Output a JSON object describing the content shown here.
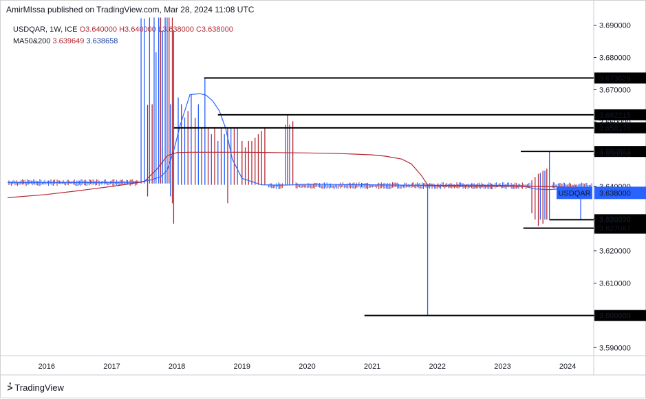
{
  "header": {
    "publisher": "AmirMIssa published on TradingView.com, Mar 28, 2024 11:08 UTC"
  },
  "legend": {
    "symbol_line": "USDQAR, 1W, ICE",
    "open": "O3.640000",
    "high": "H3.640000",
    "low": "L3.638000",
    "close": "C3.638000",
    "ma_label": "MA50&200",
    "ma_value_1": "3.639649",
    "ma_value_2": "3.638658"
  },
  "brand": {
    "name": "TradingView",
    "logo": "tv-logo"
  },
  "colors": {
    "up": "#2962ff",
    "down": "#b22833",
    "ma_fast": "#2962ff",
    "ma_slow": "#b22833",
    "price_tag": "#2962ff",
    "level_line": "#000000"
  },
  "chart_data": {
    "type": "line",
    "symbol": "USDQAR",
    "interval": "1W",
    "exchange": "ICE",
    "ylim": [
      3.5875,
      3.6925
    ],
    "y_ticks": [
      "3.690000",
      "3.680000",
      "3.670000",
      "3.660000",
      "3.650000",
      "3.640000",
      "3.630000",
      "3.620000",
      "3.610000",
      "3.600000",
      "3.590000"
    ],
    "y_tick_values": [
      3.69,
      3.68,
      3.67,
      3.66,
      3.65,
      3.64,
      3.63,
      3.62,
      3.61,
      3.6,
      3.59
    ],
    "x_ticks": [
      "2016",
      "2017",
      "2018",
      "2019",
      "2020",
      "2021",
      "2022",
      "2023",
      "2024"
    ],
    "x_tick_values": [
      2016.0,
      2017.0,
      2018.0,
      2019.0,
      2020.0,
      2021.0,
      2022.0,
      2023.0,
      2024.0
    ],
    "xlim": [
      2015.4,
      2024.4
    ],
    "grid": false,
    "current_price": {
      "label": "USDQAR",
      "value": "3.638000",
      "y": 3.638
    },
    "levels": [
      {
        "label": "3.673628",
        "y": 3.673628,
        "x_start": 2018.42
      },
      {
        "label": "3.662215",
        "y": 3.662215,
        "x_start": 2018.63
      },
      {
        "label": "3.658176",
        "y": 3.658176,
        "x_start": 2017.95
      },
      {
        "label": "3.650851",
        "y": 3.650851,
        "x_start": 2023.28
      },
      {
        "label": "3.629678",
        "y": 3.629678,
        "x_start": 2023.72
      },
      {
        "label": "3.627067",
        "y": 3.627067,
        "x_start": 2023.32
      },
      {
        "label": "3.599953",
        "y": 3.599953,
        "x_start": 2020.88
      }
    ],
    "series": [
      {
        "name": "MA50",
        "color": "#2962ff",
        "x": [
          2015.4,
          2016.0,
          2016.5,
          2017.0,
          2017.3,
          2017.45,
          2017.6,
          2017.75,
          2017.85,
          2017.95,
          2018.05,
          2018.2,
          2018.35,
          2018.45,
          2018.55,
          2018.65,
          2018.75,
          2018.85,
          2019.0,
          2019.3,
          2019.6,
          2019.8,
          2020.0,
          2020.5,
          2021.0,
          2021.5,
          2022.0,
          2022.5,
          2023.0,
          2023.3,
          2023.5,
          2023.7,
          2023.9,
          2024.1,
          2024.3
        ],
        "values": [
          3.6412,
          3.6412,
          3.6412,
          3.6412,
          3.6413,
          3.6414,
          3.642,
          3.643,
          3.645,
          3.651,
          3.659,
          3.6685,
          3.6688,
          3.6683,
          3.6665,
          3.6635,
          3.658,
          3.6485,
          3.6425,
          3.6405,
          3.6404,
          3.6405,
          3.6407,
          3.6406,
          3.6405,
          3.6404,
          3.6403,
          3.6404,
          3.6403,
          3.6402,
          3.6392,
          3.639,
          3.6392,
          3.6394,
          3.6396
        ]
      },
      {
        "name": "MA200",
        "color": "#b22833",
        "x": [
          2015.4,
          2016.0,
          2016.5,
          2017.0,
          2017.5,
          2017.7,
          2017.85,
          2018.0,
          2018.2,
          2018.6,
          2019.0,
          2019.5,
          2020.0,
          2020.5,
          2021.0,
          2021.2,
          2021.45,
          2021.6,
          2021.75,
          2021.85,
          2022.0,
          2022.5,
          2023.0,
          2023.5,
          2024.0,
          2024.3
        ],
        "values": [
          3.6365,
          3.6375,
          3.6387,
          3.64,
          3.6415,
          3.6455,
          3.6495,
          3.6505,
          3.6506,
          3.6506,
          3.6506,
          3.6505,
          3.6504,
          3.6502,
          3.6498,
          3.6494,
          3.6485,
          3.647,
          3.6435,
          3.6405,
          3.6402,
          3.6401,
          3.6401,
          3.64,
          3.6398,
          3.6397
        ]
      }
    ],
    "spikes": [
      {
        "x": 2017.45,
        "high": 3.6922,
        "low": 3.6409,
        "c": "u"
      },
      {
        "x": 2017.5,
        "high": 3.6921,
        "low": 3.6409,
        "c": "u"
      },
      {
        "x": 2017.55,
        "high": 3.6653,
        "low": 3.6369,
        "c": "d"
      },
      {
        "x": 2017.58,
        "high": 3.6924,
        "low": 3.6409,
        "c": "u"
      },
      {
        "x": 2017.62,
        "high": 3.6655,
        "low": 3.6409,
        "c": "d"
      },
      {
        "x": 2017.65,
        "high": 3.6924,
        "low": 3.6409,
        "c": "u"
      },
      {
        "x": 2017.68,
        "high": 3.6816,
        "low": 3.6409,
        "c": "u"
      },
      {
        "x": 2017.72,
        "high": 3.6924,
        "low": 3.6409,
        "c": "u"
      },
      {
        "x": 2017.75,
        "high": 3.6924,
        "low": 3.6409,
        "c": "d"
      },
      {
        "x": 2017.78,
        "high": 3.6883,
        "low": 3.6409,
        "c": "u"
      },
      {
        "x": 2017.82,
        "high": 3.6924,
        "low": 3.6409,
        "c": "u"
      },
      {
        "x": 2017.85,
        "high": 3.6924,
        "low": 3.6409,
        "c": "u"
      },
      {
        "x": 2017.88,
        "high": 3.6924,
        "low": 3.6409,
        "c": "d"
      },
      {
        "x": 2017.9,
        "high": 3.6655,
        "low": 3.6369,
        "c": "u"
      },
      {
        "x": 2017.93,
        "high": 3.6924,
        "low": 3.6348,
        "c": "d"
      },
      {
        "x": 2017.95,
        "high": 3.6883,
        "low": 3.6284,
        "c": "d"
      },
      {
        "x": 2018.02,
        "high": 3.6676,
        "low": 3.6405,
        "c": "u"
      },
      {
        "x": 2018.07,
        "high": 3.6655,
        "low": 3.6405,
        "c": "d"
      },
      {
        "x": 2018.12,
        "high": 3.6614,
        "low": 3.6405,
        "c": "u"
      },
      {
        "x": 2018.17,
        "high": 3.6634,
        "low": 3.6405,
        "c": "d"
      },
      {
        "x": 2018.22,
        "high": 3.6686,
        "low": 3.6405,
        "c": "u"
      },
      {
        "x": 2018.28,
        "high": 3.6613,
        "low": 3.6405,
        "c": "d"
      },
      {
        "x": 2018.33,
        "high": 3.6655,
        "low": 3.6405,
        "c": "u"
      },
      {
        "x": 2018.38,
        "high": 3.6582,
        "low": 3.6405,
        "c": "d"
      },
      {
        "x": 2018.43,
        "high": 3.6736,
        "low": 3.6405,
        "c": "u"
      },
      {
        "x": 2018.48,
        "high": 3.6582,
        "low": 3.6405,
        "c": "d"
      },
      {
        "x": 2018.53,
        "high": 3.6562,
        "low": 3.6405,
        "c": "u"
      },
      {
        "x": 2018.58,
        "high": 3.6582,
        "low": 3.6405,
        "c": "d"
      },
      {
        "x": 2018.63,
        "high": 3.6541,
        "low": 3.6405,
        "c": "u"
      },
      {
        "x": 2018.68,
        "high": 3.6582,
        "low": 3.6405,
        "c": "d"
      },
      {
        "x": 2018.73,
        "high": 3.6562,
        "low": 3.6405,
        "c": "u"
      },
      {
        "x": 2018.78,
        "high": 3.6582,
        "low": 3.6348,
        "c": "d"
      },
      {
        "x": 2018.83,
        "high": 3.6582,
        "low": 3.6405,
        "c": "u"
      },
      {
        "x": 2018.88,
        "high": 3.6582,
        "low": 3.6405,
        "c": "d"
      },
      {
        "x": 2018.93,
        "high": 3.6582,
        "low": 3.6405,
        "c": "u"
      },
      {
        "x": 2019.0,
        "high": 3.6541,
        "low": 3.6405,
        "c": "d"
      },
      {
        "x": 2019.05,
        "high": 3.6521,
        "low": 3.6405,
        "c": "d"
      },
      {
        "x": 2019.1,
        "high": 3.6541,
        "low": 3.6405,
        "c": "d"
      },
      {
        "x": 2019.15,
        "high": 3.6541,
        "low": 3.6405,
        "c": "d"
      },
      {
        "x": 2019.2,
        "high": 3.6551,
        "low": 3.6405,
        "c": "d"
      },
      {
        "x": 2019.25,
        "high": 3.6562,
        "low": 3.6405,
        "c": "d"
      },
      {
        "x": 2019.3,
        "high": 3.6572,
        "low": 3.6405,
        "c": "d"
      },
      {
        "x": 2019.35,
        "high": 3.6582,
        "low": 3.6405,
        "c": "d"
      },
      {
        "x": 2019.67,
        "high": 3.6592,
        "low": 3.6405,
        "c": "u"
      },
      {
        "x": 2019.7,
        "high": 3.6622,
        "low": 3.6405,
        "c": "d"
      },
      {
        "x": 2019.73,
        "high": 3.6592,
        "low": 3.6405,
        "c": "u"
      },
      {
        "x": 2019.78,
        "high": 3.6602,
        "low": 3.6405,
        "c": "d"
      },
      {
        "x": 2021.85,
        "high": 3.6407,
        "low": 3.6,
        "c": "u"
      },
      {
        "x": 2023.45,
        "high": 3.6419,
        "low": 3.6317,
        "c": "d"
      },
      {
        "x": 2023.5,
        "high": 3.6429,
        "low": 3.6297,
        "c": "d"
      },
      {
        "x": 2023.55,
        "high": 3.6439,
        "low": 3.6277,
        "c": "d"
      },
      {
        "x": 2023.58,
        "high": 3.6442,
        "low": 3.6297,
        "c": "u"
      },
      {
        "x": 2023.62,
        "high": 3.6449,
        "low": 3.6284,
        "c": "d"
      },
      {
        "x": 2023.65,
        "high": 3.6449,
        "low": 3.6297,
        "c": "u"
      },
      {
        "x": 2023.68,
        "high": 3.6455,
        "low": 3.6297,
        "c": "d"
      },
      {
        "x": 2023.72,
        "high": 3.6509,
        "low": 3.6297,
        "c": "u"
      },
      {
        "x": 2024.2,
        "high": 3.6392,
        "low": 3.6297,
        "c": "u"
      }
    ]
  }
}
